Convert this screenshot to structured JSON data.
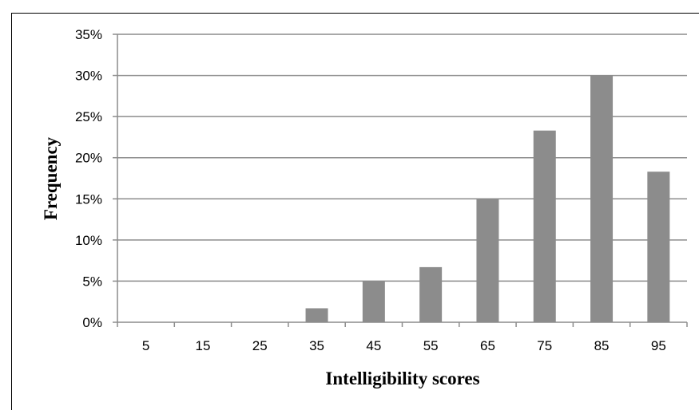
{
  "chart_data": {
    "type": "bar",
    "title": "",
    "xlabel": "Intelligibility scores",
    "ylabel": "Frequency",
    "categories": [
      "5",
      "15",
      "25",
      "35",
      "45",
      "55",
      "65",
      "75",
      "85",
      "95"
    ],
    "values": [
      0.0,
      0.0,
      0.0,
      1.7,
      5.0,
      6.7,
      15.0,
      23.3,
      30.0,
      18.3
    ],
    "value_unit": "%",
    "ylim": [
      0,
      35
    ],
    "yticks": [
      0,
      5,
      10,
      15,
      20,
      25,
      30,
      35
    ],
    "ytick_labels": [
      "0%",
      "5%",
      "10%",
      "15%",
      "20%",
      "25%",
      "30%",
      "35%"
    ],
    "grid": true,
    "legend": "none",
    "colors": {
      "bar": "#8c8c8c",
      "grid": "#8c8c8c",
      "axis": "#8c8c8c"
    }
  }
}
